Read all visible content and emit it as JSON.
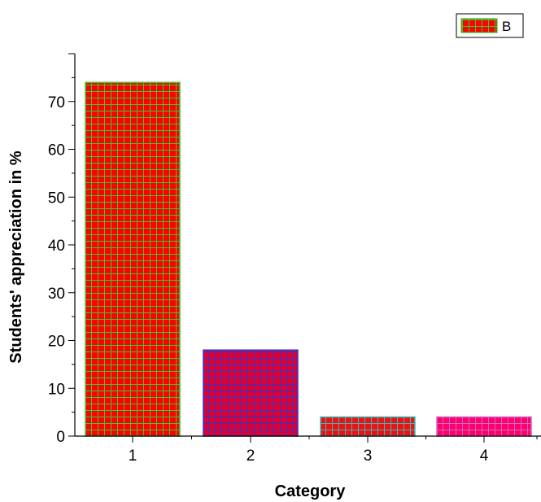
{
  "chart_data": {
    "type": "bar",
    "categories": [
      "1",
      "2",
      "3",
      "4"
    ],
    "series": [
      {
        "name": "B",
        "values": [
          74,
          18,
          4,
          4
        ]
      }
    ],
    "bar_colors": [
      {
        "fill": "#ff0000",
        "grid": "#33cc33"
      },
      {
        "fill": "#dd0033",
        "grid": "#3333cc"
      },
      {
        "fill": "#ee1111",
        "grid": "#33bbbb"
      },
      {
        "fill": "#ff0066",
        "grid": "#cc66cc"
      }
    ],
    "xlabel": "Category",
    "ylabel": "Students' appreciation in %",
    "ylim": [
      0,
      80
    ],
    "yticks": [
      0,
      10,
      20,
      30,
      40,
      50,
      60,
      70
    ],
    "grid": false,
    "legend_position": "top-right"
  }
}
